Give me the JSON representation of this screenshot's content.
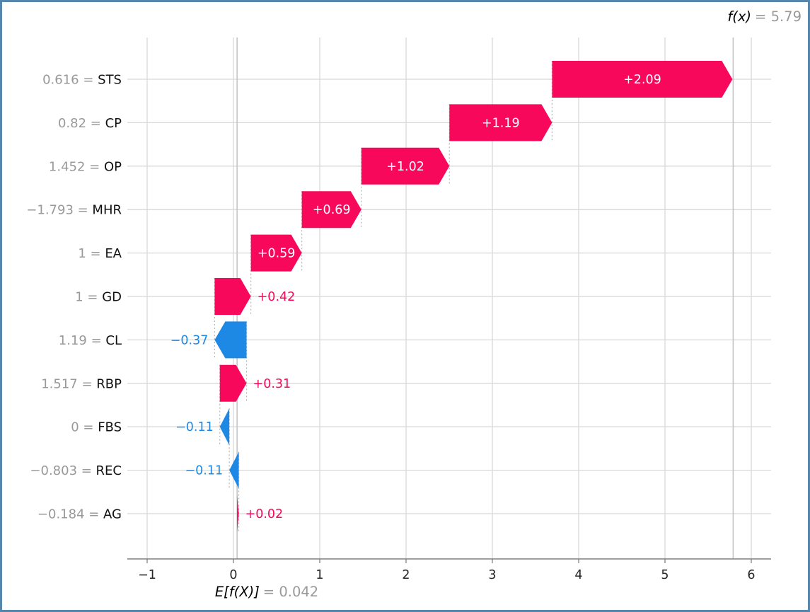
{
  "figure": {
    "border_color": "#5586ab",
    "background_color": "#ffffff"
  },
  "annotations": {
    "fx_term": "f(x)",
    "fx_value": "= 5.79",
    "ef_term": "E[f(X)]",
    "ef_value": "= 0.042"
  },
  "chart_data": {
    "type": "bar",
    "subtype": "shap-waterfall",
    "title": "",
    "xlabel": "",
    "ylabel": "",
    "fx": 5.79,
    "base_value": 0.042,
    "x_ticks": [
      -1,
      0,
      1,
      2,
      3,
      4,
      5,
      6
    ],
    "x_tick_labels": [
      "−1",
      "0",
      "1",
      "2",
      "3",
      "4",
      "5",
      "6"
    ],
    "xlim": [
      -1.23,
      6.23
    ],
    "grid": true,
    "legend": "none",
    "colors": {
      "positive": "#f7085a",
      "negative": "#1e88e5",
      "grid": "#d8d8d8",
      "reference_line": "#c2c2c2",
      "connector": "#b5b5b5",
      "axis": "#808080",
      "value_gray": "#999999",
      "feature_black": "#111111",
      "tick_label": "#262626",
      "inside_label": "#ffffff"
    },
    "rows": [
      {
        "feature": "STS",
        "data_value": "0.616",
        "shap": 2.09,
        "label": "+2.09",
        "from": 3.692,
        "to": 5.782,
        "label_inside": true
      },
      {
        "feature": "CP",
        "data_value": "0.82",
        "shap": 1.19,
        "label": "+1.19",
        "from": 2.502,
        "to": 3.692,
        "label_inside": true
      },
      {
        "feature": "OP",
        "data_value": "1.452",
        "shap": 1.02,
        "label": "+1.02",
        "from": 1.482,
        "to": 2.502,
        "label_inside": true
      },
      {
        "feature": "MHR",
        "data_value": "−1.793",
        "shap": 0.69,
        "label": "+0.69",
        "from": 0.792,
        "to": 1.482,
        "label_inside": true
      },
      {
        "feature": "EA",
        "data_value": "1",
        "shap": 0.59,
        "label": "+0.59",
        "from": 0.202,
        "to": 0.792,
        "label_inside": true
      },
      {
        "feature": "GD",
        "data_value": "1",
        "shap": 0.42,
        "label": "+0.42",
        "from": -0.218,
        "to": 0.202,
        "label_inside": false
      },
      {
        "feature": "CL",
        "data_value": "1.19",
        "shap": -0.37,
        "label": "−0.37",
        "from": 0.152,
        "to": -0.218,
        "label_inside": false
      },
      {
        "feature": "RBP",
        "data_value": "1.517",
        "shap": 0.31,
        "label": "+0.31",
        "from": -0.158,
        "to": 0.152,
        "label_inside": false
      },
      {
        "feature": "FBS",
        "data_value": "0",
        "shap": -0.11,
        "label": "−0.11",
        "from": -0.048,
        "to": -0.158,
        "label_inside": false
      },
      {
        "feature": "REC",
        "data_value": "−0.803",
        "shap": -0.11,
        "label": "−0.11",
        "from": 0.062,
        "to": -0.048,
        "label_inside": false
      },
      {
        "feature": "AG",
        "data_value": "−0.184",
        "shap": 0.02,
        "label": "+0.02",
        "from": 0.042,
        "to": 0.062,
        "label_inside": false
      }
    ]
  }
}
